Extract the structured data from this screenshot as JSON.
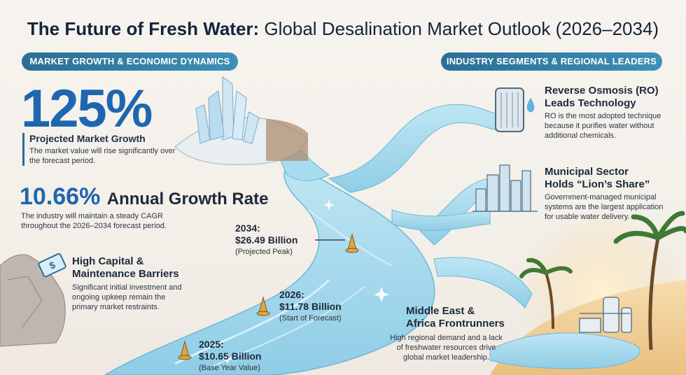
{
  "title": {
    "bold": "The Future of Fresh Water:",
    "rest": " Global Desalination Market Outlook (2026–2034)"
  },
  "sections": {
    "left": "MARKET GROWTH & ECONOMIC DYNAMICS",
    "right": "INDUSTRY SEGMENTS & REGIONAL LEADERS"
  },
  "stats": {
    "growth": {
      "value": "125%",
      "label": "Projected Market Growth",
      "desc": "The market value will rise significantly over the forecast period."
    },
    "cagr": {
      "value": "10.66%",
      "label": "Annual Growth Rate",
      "desc": "The industry will maintain a steady CAGR throughout the 2026–2034 forecast period."
    },
    "barriers": {
      "title_l1": "High Capital &",
      "title_l2": "Maintenance Barriers",
      "desc": "Significant initial investment and ongoing upkeep remain the primary market restraints."
    }
  },
  "markers": [
    {
      "year": "2034:",
      "value": "$26.49 Billion",
      "note": "(Projected Peak)"
    },
    {
      "year": "2026:",
      "value": "$11.78 Billion",
      "note": "(Start of Forecast)"
    },
    {
      "year": "2025:",
      "value": "$10.65 Billion",
      "note": "(Base Year Value)"
    }
  ],
  "segments": {
    "ro": {
      "title_l1": "Reverse Osmosis (RO)",
      "title_l2": "Leads Technology",
      "desc": "RO is the most adopted technique because it purifies water without additional chemicals."
    },
    "municipal": {
      "title_l1": "Municipal Sector",
      "title_l2": "Holds “Lion’s Share”",
      "desc": "Government-managed municipal systems are the largest application for usable water delivery."
    },
    "mea": {
      "title_l1": "Middle East &",
      "title_l2": "Africa Frontrunners",
      "desc": "High regional demand and a lack of freshwater resources drive global market leadership."
    }
  },
  "colors": {
    "accent_blue": "#1e66b0",
    "pill_blue": "#2f7aa3",
    "river": "#9fd6ea",
    "buoy": "#e0a640"
  },
  "icons": [
    "salt-crystal-icon",
    "price-tag-icon",
    "rock-icon",
    "ro-filter-icon",
    "water-drop-icon",
    "city-skyline-icon",
    "palm-tree-icon",
    "desalination-plant-icon",
    "buoy-icon"
  ]
}
